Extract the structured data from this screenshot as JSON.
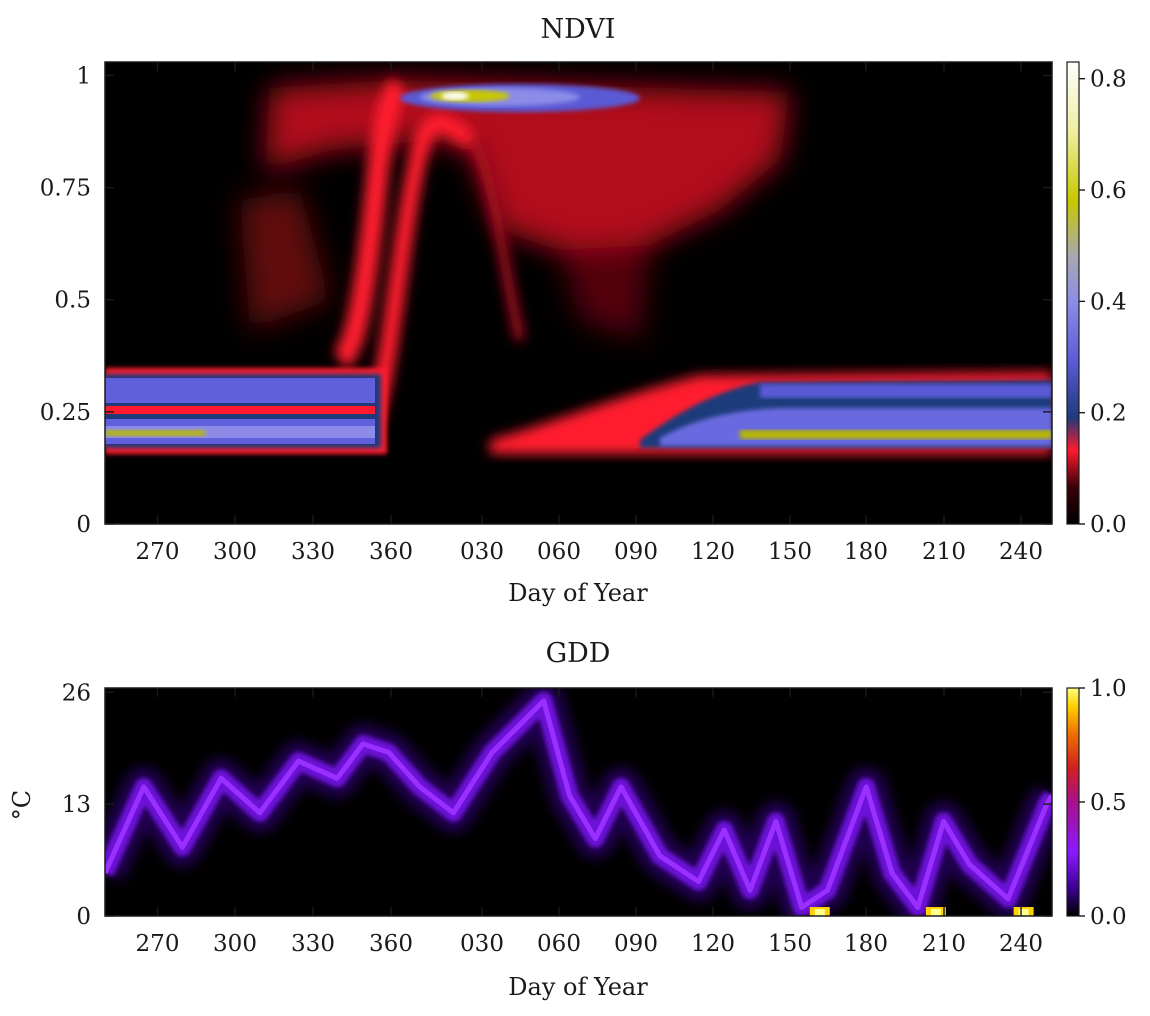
{
  "chart_data": [
    {
      "type": "heatmap",
      "title": "NDVI",
      "xlabel": "Day of Year",
      "ylabel": "",
      "x_range_doy": [
        250,
        252
      ],
      "x_ticks": [
        "270",
        "300",
        "330",
        "360",
        "030",
        "060",
        "090",
        "120",
        "150",
        "180",
        "210",
        "240"
      ],
      "ylim": [
        0,
        1.03
      ],
      "y_ticks": [
        {
          "value": 0,
          "label": "0"
        },
        {
          "value": 0.25,
          "label": "0.25"
        },
        {
          "value": 0.5,
          "label": "0.5"
        },
        {
          "value": 0.75,
          "label": "0.75"
        },
        {
          "value": 1,
          "label": "1"
        }
      ],
      "colorbar": {
        "range": [
          0,
          0.83
        ],
        "ticks": [
          {
            "value": 0.0,
            "label": "0.0"
          },
          {
            "value": 0.2,
            "label": "0.2"
          },
          {
            "value": 0.4,
            "label": "0.4"
          },
          {
            "value": 0.6,
            "label": "0.6"
          },
          {
            "value": 0.8,
            "label": "0.8"
          }
        ],
        "colormap": [
          "#000000",
          "#ff1a2e",
          "#1e3a7a",
          "#7070e6",
          "#a8a8b0",
          "#c8c800",
          "#ffffff"
        ]
      },
      "features": {
        "early_season_low_band": {
          "x_doy": [
            250,
            358
          ],
          "ndvi_range": [
            0.16,
            0.34
          ],
          "peak_ndvi": 0.2
        },
        "green_up": {
          "x_doy": [
            345,
            370
          ],
          "ndvi_from": 0.3,
          "ndvi_to": 0.95
        },
        "peak": {
          "x_doy": 20,
          "ndvi": 0.95
        },
        "late_season_low_band": {
          "x_doy": [
            40,
            252
          ],
          "ndvi_range": [
            0.16,
            0.34
          ],
          "peak_ndvi": 0.2
        }
      }
    },
    {
      "type": "heatmap",
      "title": "GDD",
      "xlabel": "Day of Year",
      "ylabel": "°C",
      "x_range_doy": [
        250,
        252
      ],
      "x_ticks": [
        "270",
        "300",
        "330",
        "360",
        "030",
        "060",
        "090",
        "120",
        "150",
        "180",
        "210",
        "240"
      ],
      "ylim": [
        0,
        26.5
      ],
      "y_ticks": [
        {
          "value": 0,
          "label": "0"
        },
        {
          "value": 13,
          "label": "13"
        },
        {
          "value": 26,
          "label": "26"
        }
      ],
      "colorbar": {
        "range": [
          0,
          1.0
        ],
        "ticks": [
          {
            "value": 0.0,
            "label": "0.0"
          },
          {
            "value": 0.5,
            "label": "0.5"
          },
          {
            "value": 1.0,
            "label": "1.0"
          }
        ],
        "colormap": [
          "#000000",
          "#3a0090",
          "#8a1aff",
          "#b0108a",
          "#e05000",
          "#ffd000",
          "#ffff80"
        ]
      },
      "trace_days": [
        250,
        265,
        280,
        295,
        310,
        325,
        340,
        350,
        360,
        372,
        385,
        400,
        410,
        420,
        430,
        440,
        450,
        465,
        480,
        490,
        500,
        510,
        520,
        530,
        545,
        555,
        565,
        575,
        585,
        600,
        615,
        617
      ],
      "trace_gdd": [
        5,
        15,
        8,
        16,
        12,
        18,
        16,
        20,
        19,
        15,
        12,
        19,
        22,
        25,
        14,
        9,
        15,
        7,
        4,
        10,
        3,
        11,
        1,
        3,
        15,
        5,
        1,
        11,
        6,
        2,
        13,
        14
      ],
      "hot_spots_doy": [
        162,
        207,
        241
      ]
    }
  ]
}
